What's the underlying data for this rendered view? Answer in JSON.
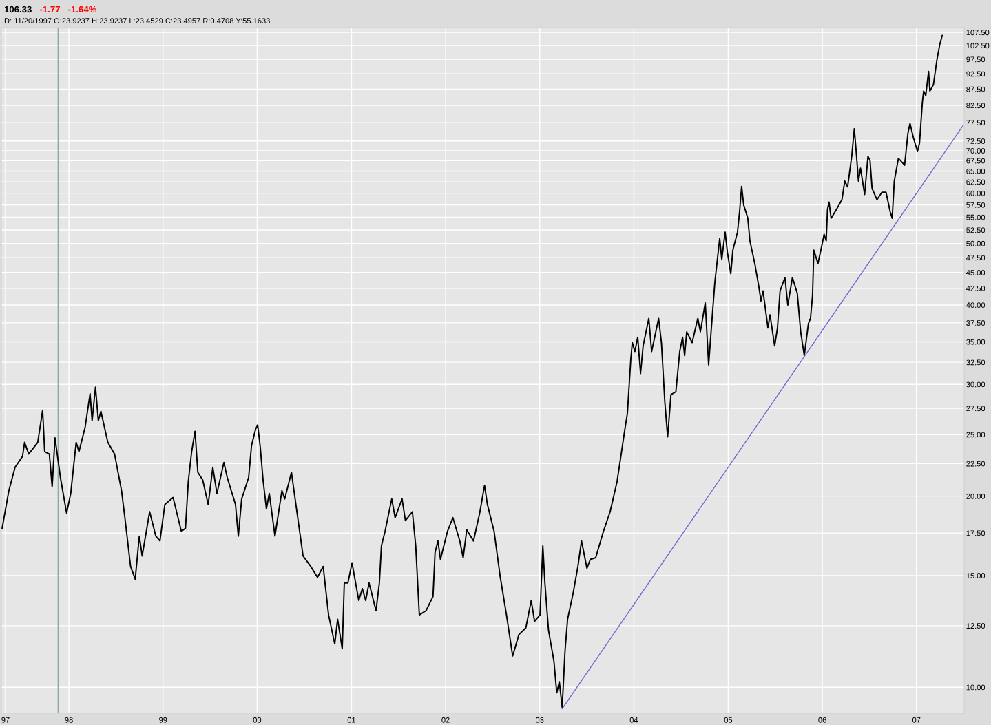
{
  "chart_data": {
    "type": "line",
    "log": true,
    "grid": true,
    "annotations": [
      "106.33",
      "-1.77",
      "-1.64%",
      "D: 11/20/1997 O:23.9237 H:23.9237 L:23.4529 C:23.4957 R:0.4708 Y:55.1633"
    ],
    "x": [
      "1997-04-17",
      "1997-05-13",
      "1997-06-06",
      "1997-07-05",
      "1997-07-13",
      "1997-07-29",
      "1997-09-02",
      "1997-09-21",
      "1997-09-29",
      "1997-10-17",
      "1997-10-28",
      "1997-11-08",
      "1997-11-29",
      "1997-12-23",
      "1998-01-08",
      "1998-01-29",
      "1998-02-09",
      "1998-03-05",
      "1998-03-24",
      "1998-04-01",
      "1998-04-14",
      "1998-04-25",
      "1998-05-05",
      "1998-06-01",
      "1998-06-27",
      "1998-07-24",
      "1998-08-06",
      "1998-08-28",
      "1998-09-15",
      "1998-10-01",
      "1998-10-12",
      "1998-11-10",
      "1998-12-04",
      "1998-12-20",
      "1999-01-08",
      "1999-02-09",
      "1999-03-13",
      "1999-03-29",
      "1999-04-09",
      "1999-04-22",
      "1999-05-05",
      "1999-05-16",
      "1999-06-04",
      "1999-06-25",
      "1999-07-13",
      "1999-07-29",
      "1999-08-25",
      "1999-09-07",
      "1999-10-09",
      "1999-10-20",
      "1999-11-02",
      "1999-11-29",
      "1999-12-10",
      "1999-12-26",
      "2000-01-03",
      "2000-01-13",
      "2000-01-24",
      "2000-02-06",
      "2000-02-17",
      "2000-03-10",
      "2000-04-06",
      "2000-04-17",
      "2000-05-13",
      "2000-06-04",
      "2000-06-27",
      "2000-07-27",
      "2000-08-22",
      "2000-09-13",
      "2000-10-04",
      "2000-10-28",
      "2000-11-08",
      "2000-11-26",
      "2000-12-04",
      "2000-12-18",
      "2001-01-03",
      "2001-01-29",
      "2001-02-12",
      "2001-02-25",
      "2001-03-10",
      "2001-04-06",
      "2001-04-19",
      "2001-04-27",
      "2001-05-11",
      "2001-06-06",
      "2001-06-19",
      "2001-07-16",
      "2001-07-29",
      "2001-08-25",
      "2001-09-07",
      "2001-09-21",
      "2001-10-17",
      "2001-11-13",
      "2001-11-21",
      "2001-12-02",
      "2001-12-12",
      "2002-01-08",
      "2002-01-29",
      "2002-02-25",
      "2002-03-10",
      "2002-03-24",
      "2002-04-19",
      "2002-05-13",
      "2002-06-01",
      "2002-06-12",
      "2002-07-08",
      "2002-08-01",
      "2002-08-25",
      "2002-09-18",
      "2002-10-12",
      "2002-11-08",
      "2002-11-29",
      "2002-12-12",
      "2003-01-02",
      "2003-01-13",
      "2003-01-21",
      "2003-02-04",
      "2003-02-25",
      "2003-03-08",
      "2003-03-18",
      "2003-03-29",
      "2003-04-09",
      "2003-04-19",
      "2003-05-11",
      "2003-05-29",
      "2003-06-12",
      "2003-07-03",
      "2003-07-16",
      "2003-08-06",
      "2003-09-05",
      "2003-10-01",
      "2003-10-28",
      "2003-11-13",
      "2003-11-26",
      "2003-12-07",
      "2003-12-20",
      "2003-12-26",
      "2004-01-05",
      "2004-01-16",
      "2004-01-27",
      "2004-02-06",
      "2004-02-28",
      "2004-03-10",
      "2004-04-06",
      "2004-04-17",
      "2004-04-30",
      "2004-05-11",
      "2004-05-24",
      "2004-06-12",
      "2004-06-27",
      "2004-07-08",
      "2004-07-16",
      "2004-07-24",
      "2004-08-14",
      "2004-09-05",
      "2004-09-15",
      "2004-10-04",
      "2004-10-17",
      "2004-10-25",
      "2004-11-10",
      "2004-11-29",
      "2004-12-07",
      "2004-12-20",
      "2004-12-29",
      "2005-01-11",
      "2005-01-19",
      "2005-02-06",
      "2005-02-14",
      "2005-02-22",
      "2005-03-02",
      "2005-03-18",
      "2005-03-26",
      "2005-04-14",
      "2005-04-30",
      "2005-05-08",
      "2005-05-16",
      "2005-06-04",
      "2005-06-12",
      "2005-06-30",
      "2005-07-11",
      "2005-07-21",
      "2005-08-09",
      "2005-08-20",
      "2005-09-07",
      "2005-09-26",
      "2005-10-09",
      "2005-10-23",
      "2005-11-08",
      "2005-11-16",
      "2005-11-24",
      "2005-11-29",
      "2005-12-15",
      "2005-12-30",
      "2006-01-08",
      "2006-01-16",
      "2006-01-21",
      "2006-01-27",
      "2006-02-04",
      "2006-02-25",
      "2006-03-18",
      "2006-03-29",
      "2006-04-09",
      "2006-04-25",
      "2006-05-05",
      "2006-05-13",
      "2006-05-21",
      "2006-05-29",
      "2006-06-14",
      "2006-06-27",
      "2006-07-05",
      "2006-07-13",
      "2006-08-01",
      "2006-08-20",
      "2006-09-05",
      "2006-09-21",
      "2006-09-29",
      "2006-10-07",
      "2006-10-23",
      "2006-11-08",
      "2006-11-16",
      "2006-11-29",
      "2006-12-07",
      "2006-12-20",
      "2007-01-05",
      "2007-01-13",
      "2007-01-24",
      "2007-01-29",
      "2007-02-06",
      "2007-02-17",
      "2007-02-22",
      "2007-03-08",
      "2007-03-21",
      "2007-04-01",
      "2007-04-11"
    ],
    "series": [
      {
        "color": "#000000",
        "values": [
          17.8,
          20.4,
          22.2,
          23.1,
          24.3,
          23.3,
          24.3,
          27.3,
          23.5,
          23.3,
          20.7,
          24.7,
          21.4,
          18.8,
          20.2,
          24.3,
          23.5,
          25.7,
          29.0,
          26.3,
          29.7,
          26.3,
          27.2,
          24.3,
          23.3,
          20.4,
          18.5,
          15.5,
          14.8,
          17.3,
          16.1,
          18.9,
          17.3,
          17.0,
          19.4,
          19.9,
          17.6,
          17.8,
          21.1,
          23.5,
          25.3,
          21.8,
          21.2,
          19.4,
          22.2,
          20.2,
          22.6,
          21.4,
          19.4,
          17.3,
          19.8,
          21.4,
          24.0,
          25.5,
          25.9,
          23.9,
          21.2,
          19.1,
          20.2,
          17.3,
          20.4,
          19.8,
          21.8,
          18.8,
          16.1,
          15.5,
          14.9,
          15.5,
          13.0,
          11.7,
          12.8,
          11.5,
          14.6,
          14.6,
          15.7,
          13.7,
          14.3,
          13.7,
          14.6,
          13.2,
          14.6,
          16.7,
          17.6,
          19.8,
          18.5,
          19.8,
          18.3,
          18.9,
          16.7,
          13.0,
          13.2,
          13.9,
          16.3,
          17.0,
          15.9,
          17.6,
          18.5,
          17.0,
          16.0,
          17.7,
          17.0,
          18.8,
          20.8,
          19.4,
          17.6,
          14.9,
          13.0,
          11.2,
          12.1,
          12.4,
          13.7,
          12.7,
          13.0,
          16.7,
          14.6,
          12.3,
          11.0,
          9.8,
          10.2,
          9.3,
          11.4,
          12.8,
          14.1,
          15.5,
          17.0,
          15.4,
          15.9,
          16.0,
          17.6,
          18.9,
          21.1,
          23.3,
          25.3,
          27.0,
          32.8,
          34.9,
          33.8,
          35.6,
          31.2,
          34.5,
          38.1,
          33.8,
          38.1,
          34.9,
          28.2,
          24.8,
          28.9,
          29.2,
          33.8,
          35.6,
          33.3,
          36.3,
          34.9,
          38.1,
          36.3,
          40.3,
          32.2,
          35.6,
          43.4,
          50.9,
          47.2,
          52.1,
          48.4,
          44.8,
          48.8,
          52.1,
          56.1,
          61.5,
          57.5,
          54.8,
          50.5,
          46.5,
          42.7,
          40.6,
          42.1,
          36.8,
          38.6,
          34.5,
          36.8,
          42.1,
          44.2,
          40.0,
          44.2,
          41.7,
          36.3,
          33.3,
          37.4,
          38.1,
          41.4,
          48.8,
          46.5,
          49.6,
          51.7,
          50.5,
          56.6,
          58.1,
          54.8,
          56.6,
          58.6,
          62.7,
          61.4,
          68.6,
          75.8,
          69.2,
          62.7,
          65.7,
          59.7,
          68.6,
          67.5,
          61.0,
          58.6,
          60.2,
          60.2,
          56.1,
          54.8,
          62.7,
          68.1,
          67.0,
          66.4,
          74.6,
          77.3,
          73.4,
          69.8,
          72.0,
          83.5,
          86.9,
          85.5,
          93.3,
          86.9,
          89.0,
          97.1,
          102.7,
          106.3
        ]
      },
      {
        "type": "line",
        "color": "#6a6acc",
        "x": [
          "2003-03-29",
          "2007-07-02"
        ],
        "values": [
          9.25,
          76.8
        ]
      }
    ],
    "ref_lines": [
      {
        "axis": "x",
        "value": "1997-11-20",
        "color": "#8aa8a0"
      }
    ],
    "xlim": [
      "1997-04-14",
      "2007-07-05"
    ],
    "ylim": [
      9.1,
      109.4
    ],
    "xticks": [
      {
        "value": "1997-04-30",
        "label": "97"
      },
      {
        "value": "1998-01-01",
        "label": "98"
      },
      {
        "value": "1999-01-01",
        "label": "99"
      },
      {
        "value": "2000-01-01",
        "label": "00"
      },
      {
        "value": "2001-01-01",
        "label": "01"
      },
      {
        "value": "2002-01-01",
        "label": "02"
      },
      {
        "value": "2003-01-01",
        "label": "03"
      },
      {
        "value": "2004-01-01",
        "label": "04"
      },
      {
        "value": "2005-01-01",
        "label": "05"
      },
      {
        "value": "2006-01-01",
        "label": "06"
      },
      {
        "value": "2007-01-01",
        "label": "07"
      }
    ],
    "yticks": [
      {
        "value": 10,
        "label": "10.00"
      },
      {
        "value": 12.5,
        "label": "12.50"
      },
      {
        "value": 15,
        "label": "15.00"
      },
      {
        "value": 17.5,
        "label": "17.50"
      },
      {
        "value": 20,
        "label": "20.00"
      },
      {
        "value": 22.5,
        "label": "22.50"
      },
      {
        "value": 25,
        "label": "25.00"
      },
      {
        "value": 27.5,
        "label": "27.50"
      },
      {
        "value": 30,
        "label": "30.00"
      },
      {
        "value": 32.5,
        "label": "32.50"
      },
      {
        "value": 35,
        "label": "35.00"
      },
      {
        "value": 37.5,
        "label": "37.50"
      },
      {
        "value": 40,
        "label": "40.00"
      },
      {
        "value": 42.5,
        "label": "42.50"
      },
      {
        "value": 45,
        "label": "45.00"
      },
      {
        "value": 47.5,
        "label": "47.50"
      },
      {
        "value": 50,
        "label": "50.00"
      },
      {
        "value": 52.5,
        "label": "52.50"
      },
      {
        "value": 55,
        "label": "55.00"
      },
      {
        "value": 57.5,
        "label": "57.50"
      },
      {
        "value": 60,
        "label": "60.00"
      },
      {
        "value": 62.5,
        "label": "62.50"
      },
      {
        "value": 65,
        "label": "65.00"
      },
      {
        "value": 67.5,
        "label": "67.50"
      },
      {
        "value": 70,
        "label": "70.00"
      },
      {
        "value": 72.5,
        "label": "72.50"
      },
      {
        "value": 77.5,
        "label": "77.50"
      },
      {
        "value": 82.5,
        "label": "82.50"
      },
      {
        "value": 87.5,
        "label": "87.50"
      },
      {
        "value": 92.5,
        "label": "92.50"
      },
      {
        "value": 97.5,
        "label": "97.50"
      },
      {
        "value": 102.5,
        "label": "102.50"
      },
      {
        "value": 107.5,
        "label": "107.50"
      }
    ]
  }
}
